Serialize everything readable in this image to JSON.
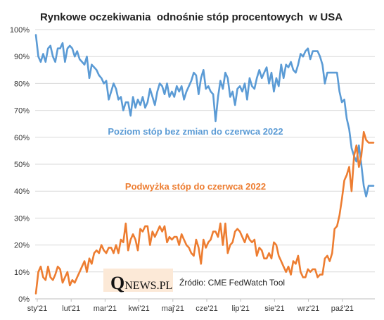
{
  "colors": {
    "blue": "#5b9bd5",
    "orange": "#ed7d31",
    "grid": "#d9d9d9",
    "logo_bg": "#fce9d7"
  },
  "source_text": "Źródło: CME FedWatch Tool",
  "logo": {
    "q": "Q",
    "rest": "NEWS.PL"
  },
  "chart_data": {
    "type": "line",
    "title": "Rynkowe oczekiwania  odnośnie stóp procentowych  w USA",
    "xlabel": "",
    "ylabel": "",
    "ylim": [
      0,
      100
    ],
    "y_ticks": [
      "0%",
      "10%",
      "20%",
      "30%",
      "40%",
      "50%",
      "60%",
      "70%",
      "80%",
      "90%",
      "100%"
    ],
    "x_ticks": [
      "sty'21",
      "lut'21",
      "mar'21",
      "kwi'21",
      "maj'21",
      "cze'21",
      "lip'21",
      "sie'21",
      "wrz'21",
      "paź'21"
    ],
    "grid": true,
    "legend": "none",
    "annotations": [
      {
        "text": "Poziom stóp bez zmian do czerwca 2022",
        "series": 0
      },
      {
        "text": "Podwyżka stóp do czerwca 2022",
        "series": 1
      }
    ],
    "series": [
      {
        "values": [
          98,
          90,
          88,
          91,
          88,
          93,
          94,
          90,
          88,
          93,
          93,
          95,
          88,
          93,
          94,
          93,
          90,
          92,
          89,
          88,
          87,
          90,
          82,
          87,
          86,
          85,
          83,
          82,
          80,
          81,
          74,
          77,
          80,
          78,
          74,
          75,
          70,
          73,
          73,
          68,
          75,
          71,
          74,
          72,
          75,
          71,
          73,
          78,
          75,
          72,
          77,
          80,
          79,
          76,
          80,
          75,
          77,
          75,
          79,
          77,
          79,
          74,
          77,
          79,
          81,
          84,
          83,
          76,
          82,
          85,
          78,
          79,
          77,
          76,
          66,
          75,
          81,
          78,
          84,
          82,
          75,
          77,
          72,
          78,
          79,
          77,
          80,
          74,
          82,
          79,
          78,
          82,
          85,
          82,
          84,
          86,
          80,
          84,
          77,
          82,
          79,
          87,
          82,
          87,
          86,
          88,
          85,
          84,
          87,
          91,
          90,
          92,
          93,
          89,
          92,
          92,
          92,
          90,
          87,
          80,
          84,
          84,
          84,
          84,
          84,
          77,
          73,
          74,
          67,
          63,
          56,
          53,
          51,
          57,
          50,
          42,
          38,
          42,
          42,
          42
        ]
      },
      {
        "values": [
          2,
          10,
          12,
          8,
          7,
          12,
          8,
          7,
          9,
          12,
          11,
          6,
          8,
          10,
          5,
          7,
          6,
          8,
          10,
          12,
          14,
          10,
          15,
          13,
          17,
          18,
          17,
          20,
          18,
          17,
          19,
          19,
          17,
          20,
          17,
          22,
          21,
          28,
          18,
          22,
          24,
          22,
          18,
          26,
          25,
          27,
          27,
          20,
          25,
          23,
          25,
          27,
          25,
          27,
          21,
          23,
          22,
          23,
          23,
          20,
          24,
          22,
          20,
          19,
          17,
          16,
          22,
          19,
          13,
          22,
          19,
          21,
          22,
          25,
          25,
          23,
          28,
          20,
          28,
          17,
          20,
          21,
          25,
          26,
          25,
          23,
          21,
          24,
          22,
          21,
          22,
          16,
          19,
          18,
          15,
          15,
          17,
          15,
          21,
          20,
          16,
          14,
          12,
          10,
          12,
          9,
          14,
          13,
          16,
          10,
          8,
          8,
          11,
          10,
          11,
          11,
          8,
          9,
          9,
          15,
          16,
          14,
          17,
          26,
          27,
          31,
          37,
          44,
          46,
          49,
          40,
          53,
          57,
          49,
          53,
          62,
          59,
          58,
          58,
          58
        ]
      }
    ]
  }
}
